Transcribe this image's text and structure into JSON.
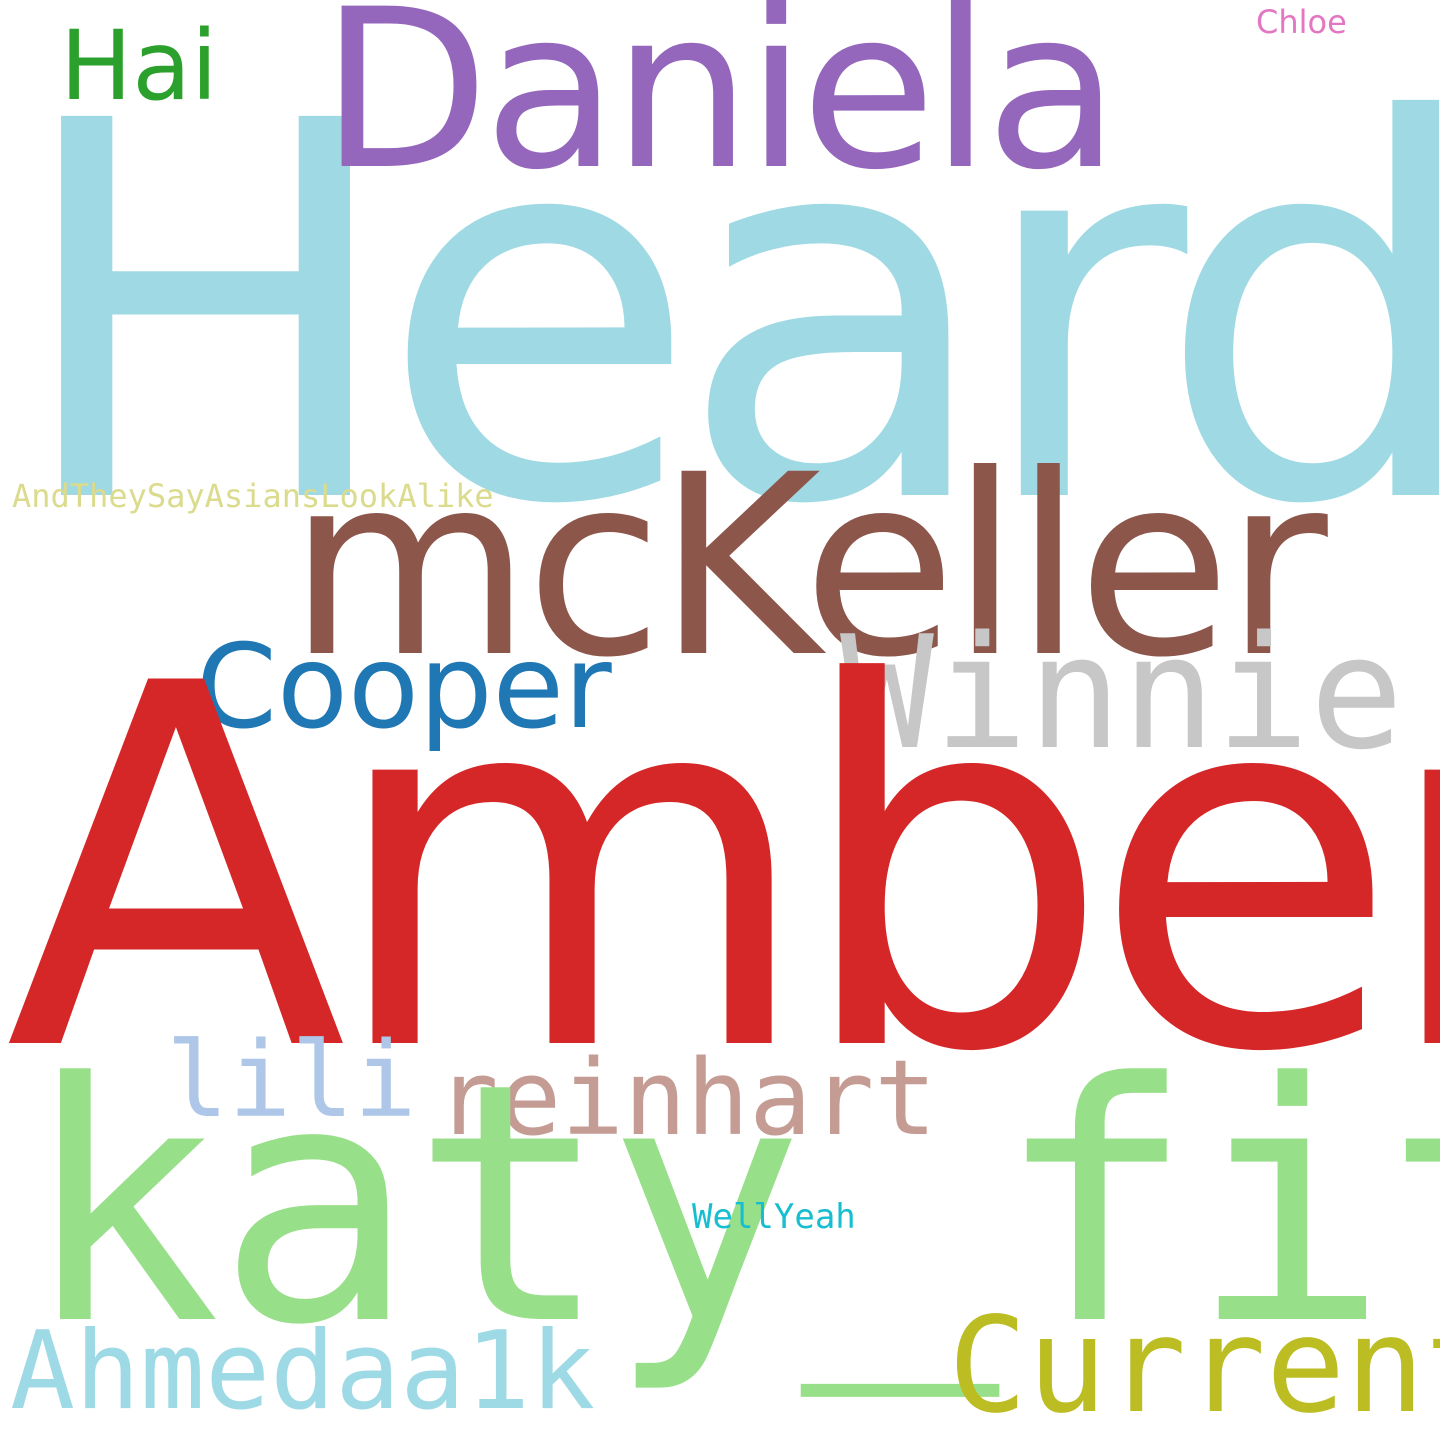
{
  "words": {
    "heard": {
      "text": "Heard",
      "color": "#9fd9e4"
    },
    "daniela": {
      "text": "Daniela",
      "color": "#9467bd"
    },
    "hai": {
      "text": "Hai",
      "color": "#2ca02c"
    },
    "chloe": {
      "text": "Chloe",
      "color": "#e377c2"
    },
    "andthey": {
      "text": "AndTheySayAsiansLookAlike",
      "color": "#dbdb8d"
    },
    "mckeller": {
      "text": "mcKeller",
      "color": "#8c564b"
    },
    "cooper": {
      "text": "Cooper",
      "color": "#1f77b4"
    },
    "winnie": {
      "text": "Winnie",
      "color": "#c7c7c7"
    },
    "amber": {
      "text": "Amber",
      "color": "#d62728"
    },
    "lili": {
      "text": "lili",
      "color": "#aec7e8"
    },
    "reinhart": {
      "text": "reinhart",
      "color": "#c49c94"
    },
    "katy": {
      "text": "katy_fit",
      "color": "#98df8a"
    },
    "wellyeah": {
      "text": "WellYeah",
      "color": "#17becf"
    },
    "current": {
      "text": "Current",
      "color": "#bcbd22"
    },
    "ahmedaa1k": {
      "text": "Ahmedaa1k",
      "color": "#9edae5"
    }
  }
}
